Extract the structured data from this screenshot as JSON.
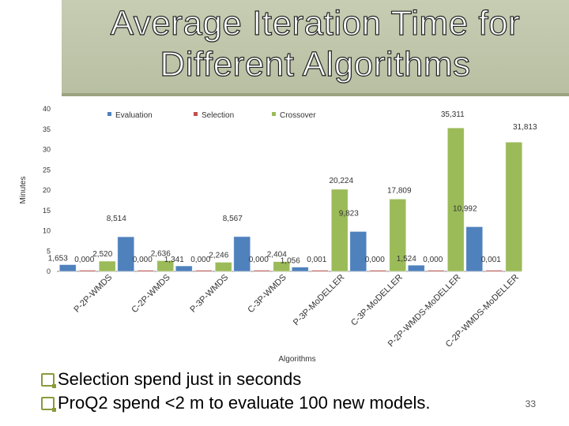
{
  "slide": {
    "title_line1": "Average Iteration Time for",
    "title_line2": "Different Algorithms",
    "bullets": [
      "Selection spend just in seconds",
      "ProQ2 spend <2 m to evaluate 100 new models."
    ],
    "page_number": "33"
  },
  "chart_data": {
    "type": "bar",
    "ylabel": "Minutes",
    "xlabel": "Algorithms",
    "ylim": [
      0,
      40
    ],
    "yticks": [
      0,
      5,
      10,
      15,
      20,
      25,
      30,
      35,
      40
    ],
    "legend_position": "top",
    "grid": false,
    "categories": [
      "P-2P-WMDS",
      "C-2P-WMDS",
      "P-3P-WMDS",
      "C-3P-WMDS",
      "P-3P-MoDELLER",
      "C-3P-MoDELLER",
      "P-2P-WMDS-MoDELLER",
      "C-2P-WMDS-MoDELLER"
    ],
    "series": [
      {
        "name": "Evaluation",
        "color": "#4f81bd",
        "values": [
          1.653,
          8.514,
          1.341,
          8.567,
          1.056,
          9.823,
          1.524,
          10.992
        ],
        "labels": [
          "1,653",
          "8,514",
          "1,341",
          "8,567",
          "1,056",
          "9,823",
          "1,524",
          "10,992"
        ]
      },
      {
        "name": "Selection",
        "color": "#c0504d",
        "values": [
          0.0,
          0.0,
          0.0,
          0.0,
          0.001,
          0.0,
          0.0,
          0.001
        ],
        "labels": [
          "0,000",
          "0,000",
          "0,000",
          "0,000",
          "0,001",
          "0,000",
          "0,000",
          "0,001"
        ]
      },
      {
        "name": "Crossover",
        "color": "#9bbb59",
        "values": [
          2.52,
          2.636,
          2.246,
          2.404,
          20.224,
          17.809,
          35.311,
          31.813
        ],
        "labels": [
          "2,520",
          "2,636",
          "2,246",
          "2,404",
          "20,224",
          "17,809",
          "35,311",
          "31,813"
        ]
      }
    ]
  }
}
